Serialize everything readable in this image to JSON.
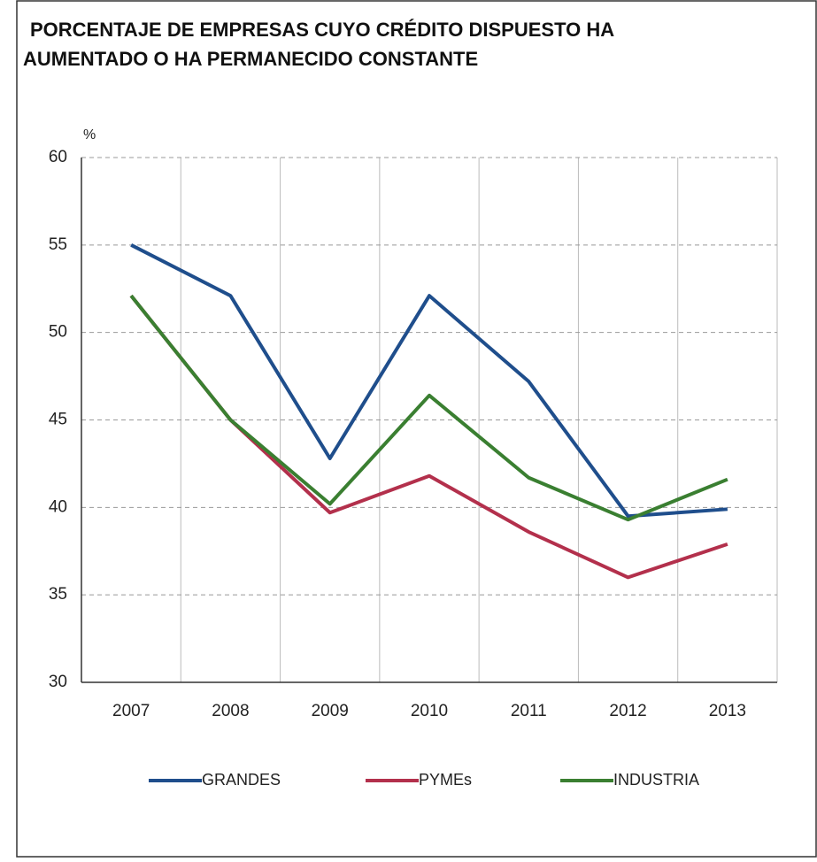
{
  "chart_data": {
    "type": "line",
    "title": [
      "PORCENTAJE DE EMPRESAS CUYO CRÉDITO DISPUESTO HA",
      "AUMENTADO O HA PERMANECIDO CONSTANTE"
    ],
    "y_label": "%",
    "categories": [
      "2007",
      "2008",
      "2009",
      "2010",
      "2011",
      "2012",
      "2013"
    ],
    "series": [
      {
        "name": "GRANDES",
        "color": "#1f4e8c",
        "values": [
          55.0,
          52.1,
          42.8,
          52.1,
          47.2,
          39.5,
          39.9
        ]
      },
      {
        "name": "PYMEs",
        "color": "#b3304c",
        "values": [
          52.1,
          45.0,
          39.7,
          41.8,
          38.6,
          36.0,
          37.9
        ]
      },
      {
        "name": "INDUSTRIA",
        "color": "#3a7f31",
        "values": [
          52.1,
          45.0,
          40.2,
          46.4,
          41.7,
          39.3,
          41.6
        ]
      }
    ],
    "ylim": [
      30,
      60
    ],
    "yticks": [
      30,
      35,
      40,
      45,
      50,
      55,
      60
    ],
    "grid": true,
    "legend": "bottom"
  }
}
